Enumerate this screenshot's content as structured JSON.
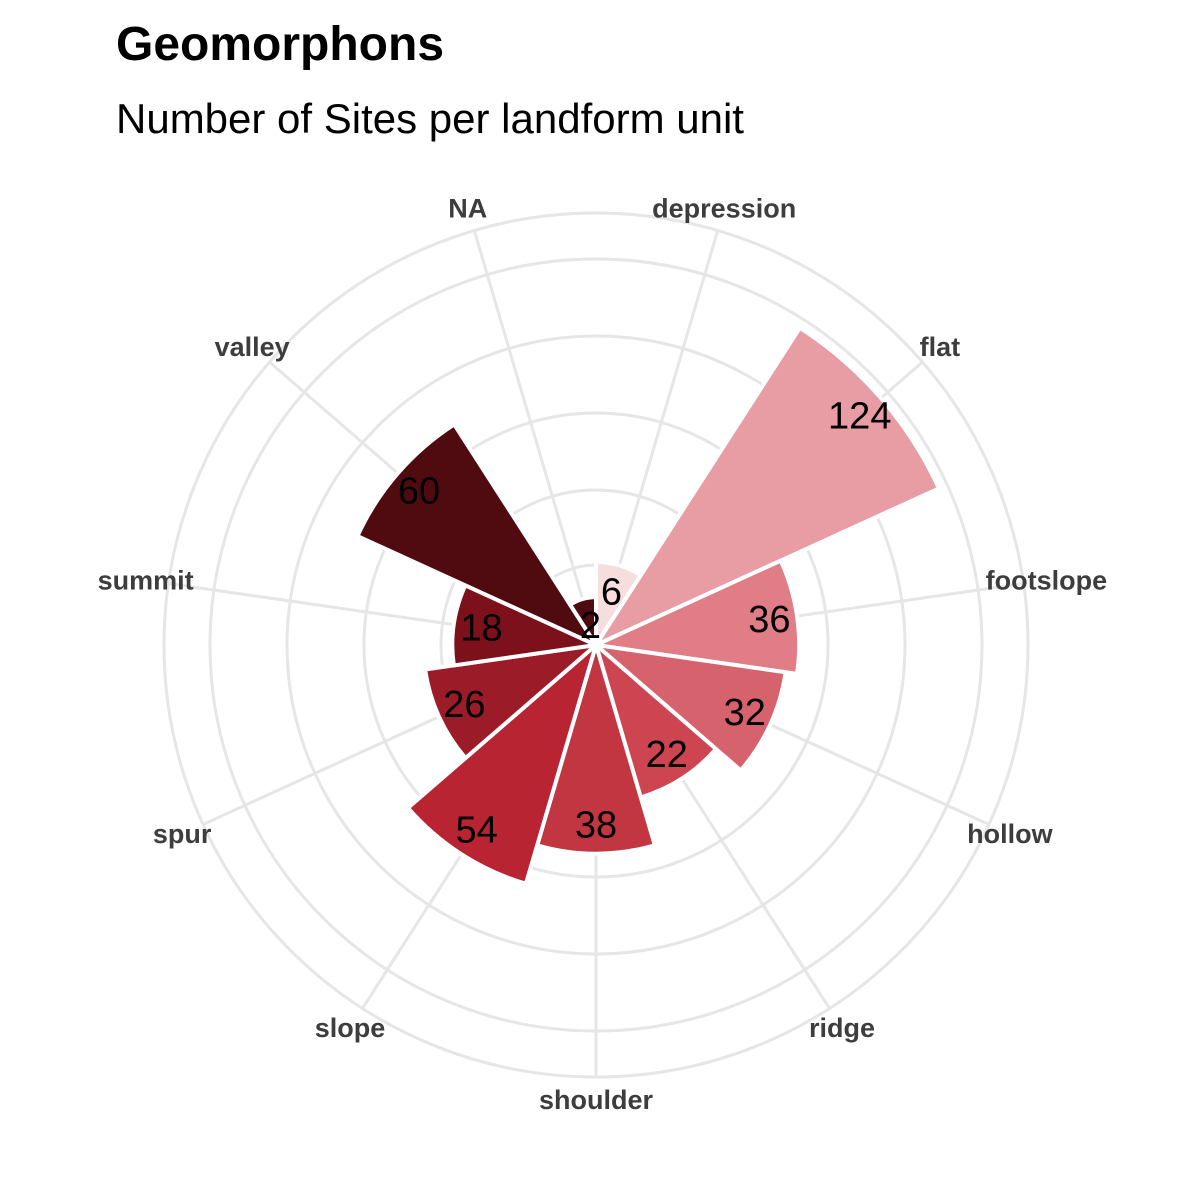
{
  "chart_data": {
    "type": "bar",
    "coord": "polar",
    "title": "Geomorphons",
    "subtitle": "Number of Sites per landform unit",
    "categories": [
      "depression",
      "flat",
      "footslope",
      "hollow",
      "ridge",
      "shoulder",
      "slope",
      "spur",
      "summit",
      "valley",
      "NA"
    ],
    "values": [
      6,
      124,
      36,
      32,
      22,
      38,
      54,
      26,
      18,
      60,
      2
    ],
    "colors": [
      "#f7dede",
      "#e89ca3",
      "#e07d86",
      "#d6626d",
      "#cc4550",
      "#c13641",
      "#b82432",
      "#9b1b28",
      "#7c111c",
      "#4f0b10",
      "#4f0b10"
    ],
    "grid": true,
    "grid_color": "#e6e6e6"
  }
}
